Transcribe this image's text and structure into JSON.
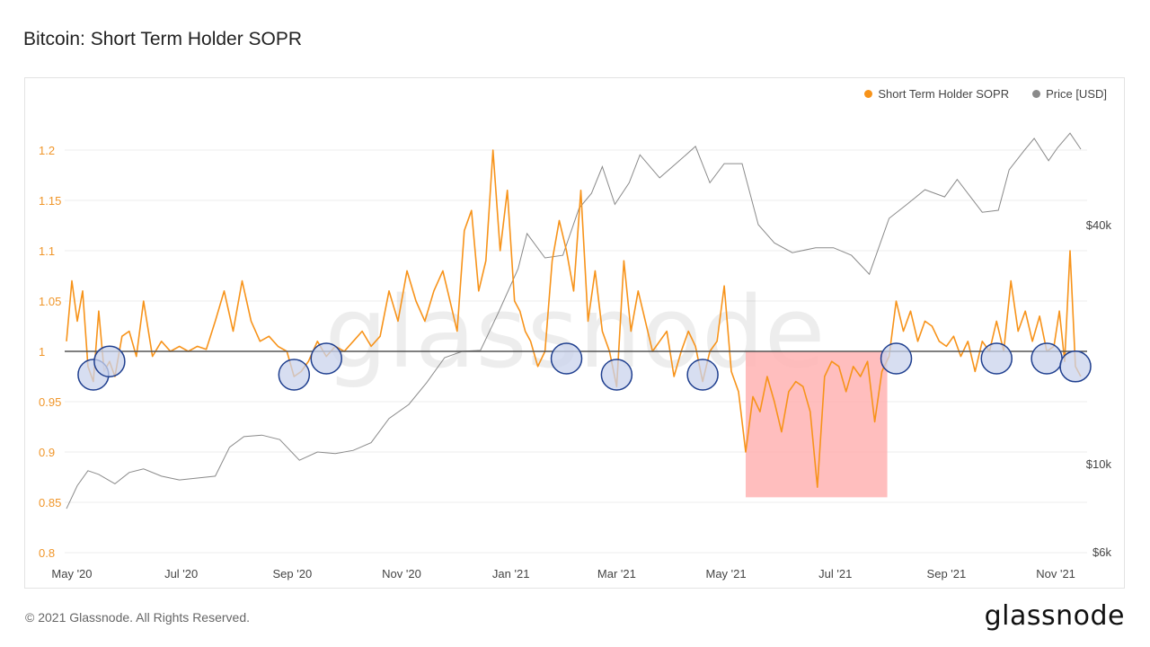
{
  "title": "Bitcoin: Short Term Holder SOPR",
  "footer": {
    "copyright": "© 2021 Glassnode. All Rights Reserved.",
    "logo": "glassnode"
  },
  "watermark": "glassnode",
  "colors": {
    "sopr": "#f7931a",
    "price": "#8a8a8a",
    "baseline": "#555555",
    "highlight": "#ffb3b3",
    "circle_fill": "#c9d3ec",
    "circle_stroke": "#1f3f8f"
  },
  "legend": [
    {
      "label": "Short Term Holder SOPR",
      "color": "#f7931a"
    },
    {
      "label": "Price [USD]",
      "color": "#8a8a8a"
    }
  ],
  "chart_data": {
    "type": "line",
    "title": "Bitcoin: Short Term Holder SOPR",
    "x_ticks": [
      "May '20",
      "Jul '20",
      "Sep '20",
      "Nov '20",
      "Jan '21",
      "Mar '21",
      "May '21",
      "Jul '21",
      "Sep '21",
      "Nov '21"
    ],
    "y_left": {
      "ticks": [
        "0.8",
        "0.85",
        "0.9",
        "0.95",
        "1",
        "1.05",
        "1.1",
        "1.15",
        "1.2"
      ],
      "ylim": [
        0.8,
        1.2
      ]
    },
    "y_right": {
      "ticks": [
        "$6k",
        "$10k",
        "$40k"
      ],
      "scale": "log"
    },
    "baseline": 1,
    "series": [
      {
        "name": "Short Term Holder SOPR",
        "axis": "left",
        "x": [
          "2020-04-28",
          "2020-05-01",
          "2020-05-04",
          "2020-05-07",
          "2020-05-10",
          "2020-05-13",
          "2020-05-16",
          "2020-05-19",
          "2020-05-22",
          "2020-05-25",
          "2020-05-29",
          "2020-06-02",
          "2020-06-06",
          "2020-06-10",
          "2020-06-15",
          "2020-06-20",
          "2020-06-25",
          "2020-06-30",
          "2020-07-05",
          "2020-07-10",
          "2020-07-15",
          "2020-07-20",
          "2020-07-25",
          "2020-07-30",
          "2020-08-04",
          "2020-08-09",
          "2020-08-14",
          "2020-08-19",
          "2020-08-24",
          "2020-08-29",
          "2020-09-02",
          "2020-09-06",
          "2020-09-10",
          "2020-09-15",
          "2020-09-20",
          "2020-09-25",
          "2020-09-30",
          "2020-10-05",
          "2020-10-10",
          "2020-10-15",
          "2020-10-20",
          "2020-10-25",
          "2020-10-30",
          "2020-11-04",
          "2020-11-09",
          "2020-11-14",
          "2020-11-19",
          "2020-11-24",
          "2020-11-28",
          "2020-12-02",
          "2020-12-06",
          "2020-12-10",
          "2020-12-14",
          "2020-12-18",
          "2020-12-22",
          "2020-12-26",
          "2020-12-30",
          "2021-01-03",
          "2021-01-06",
          "2021-01-09",
          "2021-01-12",
          "2021-01-16",
          "2021-01-20",
          "2021-01-24",
          "2021-01-28",
          "2021-02-01",
          "2021-02-05",
          "2021-02-09",
          "2021-02-13",
          "2021-02-17",
          "2021-02-21",
          "2021-02-25",
          "2021-03-01",
          "2021-03-05",
          "2021-03-09",
          "2021-03-13",
          "2021-03-17",
          "2021-03-21",
          "2021-03-25",
          "2021-03-29",
          "2021-04-02",
          "2021-04-06",
          "2021-04-10",
          "2021-04-14",
          "2021-04-18",
          "2021-04-22",
          "2021-04-26",
          "2021-04-30",
          "2021-05-04",
          "2021-05-08",
          "2021-05-12",
          "2021-05-16",
          "2021-05-20",
          "2021-05-24",
          "2021-05-28",
          "2021-06-01",
          "2021-06-05",
          "2021-06-09",
          "2021-06-13",
          "2021-06-17",
          "2021-06-21",
          "2021-06-25",
          "2021-06-29",
          "2021-07-03",
          "2021-07-07",
          "2021-07-11",
          "2021-07-15",
          "2021-07-19",
          "2021-07-23",
          "2021-07-27",
          "2021-07-31",
          "2021-08-04",
          "2021-08-08",
          "2021-08-12",
          "2021-08-16",
          "2021-08-20",
          "2021-08-24",
          "2021-08-28",
          "2021-09-01",
          "2021-09-05",
          "2021-09-09",
          "2021-09-13",
          "2021-09-17",
          "2021-09-21",
          "2021-09-25",
          "2021-09-29",
          "2021-10-03",
          "2021-10-07",
          "2021-10-11",
          "2021-10-15",
          "2021-10-19",
          "2021-10-23",
          "2021-10-27",
          "2021-10-31",
          "2021-11-03",
          "2021-11-06",
          "2021-11-09",
          "2021-11-12",
          "2021-11-15"
        ],
        "values": [
          1.01,
          1.07,
          1.03,
          1.06,
          0.985,
          0.97,
          1.04,
          0.98,
          0.99,
          0.975,
          1.015,
          1.02,
          0.995,
          1.05,
          0.995,
          1.01,
          1.0,
          1.005,
          1.0,
          1.005,
          1.002,
          1.03,
          1.06,
          1.02,
          1.07,
          1.03,
          1.01,
          1.015,
          1.005,
          1.0,
          0.975,
          0.98,
          0.99,
          1.01,
          0.995,
          1.005,
          1.0,
          1.01,
          1.02,
          1.005,
          1.015,
          1.06,
          1.03,
          1.08,
          1.05,
          1.03,
          1.06,
          1.08,
          1.05,
          1.02,
          1.12,
          1.14,
          1.06,
          1.09,
          1.2,
          1.1,
          1.16,
          1.05,
          1.04,
          1.02,
          1.01,
          0.985,
          1.0,
          1.09,
          1.13,
          1.1,
          1.06,
          1.16,
          1.03,
          1.08,
          1.02,
          1.0,
          0.965,
          1.09,
          1.02,
          1.06,
          1.03,
          1.0,
          1.01,
          1.02,
          0.975,
          1.0,
          1.02,
          1.005,
          0.97,
          1.0,
          1.01,
          1.065,
          0.98,
          0.96,
          0.9,
          0.955,
          0.94,
          0.975,
          0.95,
          0.92,
          0.96,
          0.97,
          0.965,
          0.94,
          0.865,
          0.975,
          0.99,
          0.985,
          0.96,
          0.985,
          0.975,
          0.99,
          0.93,
          0.98,
          0.995,
          1.05,
          1.02,
          1.04,
          1.01,
          1.03,
          1.025,
          1.01,
          1.005,
          1.015,
          0.995,
          1.01,
          0.98,
          1.01,
          1.0,
          1.03,
          1.0,
          1.07,
          1.02,
          1.04,
          1.01,
          1.035,
          1.0,
          1.005,
          1.04,
          0.99,
          1.1,
          0.985,
          0.975
        ]
      },
      {
        "name": "Price [USD]",
        "axis": "right",
        "x": [
          "2020-04-28",
          "2020-05-04",
          "2020-05-10",
          "2020-05-16",
          "2020-05-25",
          "2020-06-02",
          "2020-06-10",
          "2020-06-20",
          "2020-06-30",
          "2020-07-10",
          "2020-07-20",
          "2020-07-28",
          "2020-08-05",
          "2020-08-15",
          "2020-08-25",
          "2020-09-05",
          "2020-09-15",
          "2020-09-25",
          "2020-10-05",
          "2020-10-15",
          "2020-10-25",
          "2020-11-05",
          "2020-11-15",
          "2020-11-25",
          "2020-12-05",
          "2020-12-15",
          "2020-12-25",
          "2021-01-05",
          "2021-01-10",
          "2021-01-20",
          "2021-01-30",
          "2021-02-08",
          "2021-02-15",
          "2021-02-21",
          "2021-02-28",
          "2021-03-08",
          "2021-03-14",
          "2021-03-25",
          "2021-04-05",
          "2021-04-14",
          "2021-04-22",
          "2021-04-30",
          "2021-05-10",
          "2021-05-19",
          "2021-05-28",
          "2021-06-07",
          "2021-06-20",
          "2021-06-30",
          "2021-07-10",
          "2021-07-20",
          "2021-07-31",
          "2021-08-10",
          "2021-08-20",
          "2021-08-31",
          "2021-09-07",
          "2021-09-21",
          "2021-09-30",
          "2021-10-06",
          "2021-10-15",
          "2021-10-20",
          "2021-10-28",
          "2021-11-02",
          "2021-11-09",
          "2021-11-15"
        ],
        "values": [
          7700,
          8800,
          9600,
          9400,
          8900,
          9500,
          9700,
          9300,
          9100,
          9200,
          9300,
          11000,
          11700,
          11800,
          11500,
          10200,
          10700,
          10600,
          10800,
          11300,
          13000,
          14100,
          16000,
          18500,
          19200,
          19300,
          24000,
          31000,
          38000,
          33000,
          33500,
          44000,
          48000,
          56000,
          45000,
          51000,
          60000,
          52500,
          58000,
          63000,
          51000,
          57000,
          57000,
          40000,
          36000,
          34000,
          35000,
          35000,
          33500,
          30000,
          41500,
          45000,
          49000,
          47000,
          52000,
          43000,
          43500,
          55000,
          62000,
          66000,
          58000,
          62500,
          68000,
          62000
        ]
      }
    ],
    "annotations": {
      "highlight_region": {
        "from": "2021-05-12",
        "to": "2021-07-30",
        "y_from": 0.855,
        "y_to": 1.0
      },
      "circled_dips": [
        "2020-05-13",
        "2020-05-22",
        "2020-09-02",
        "2020-09-20",
        "2021-02-01",
        "2021-03-01",
        "2021-04-18",
        "2021-08-04",
        "2021-09-29",
        "2021-10-27",
        "2021-11-12"
      ]
    }
  }
}
